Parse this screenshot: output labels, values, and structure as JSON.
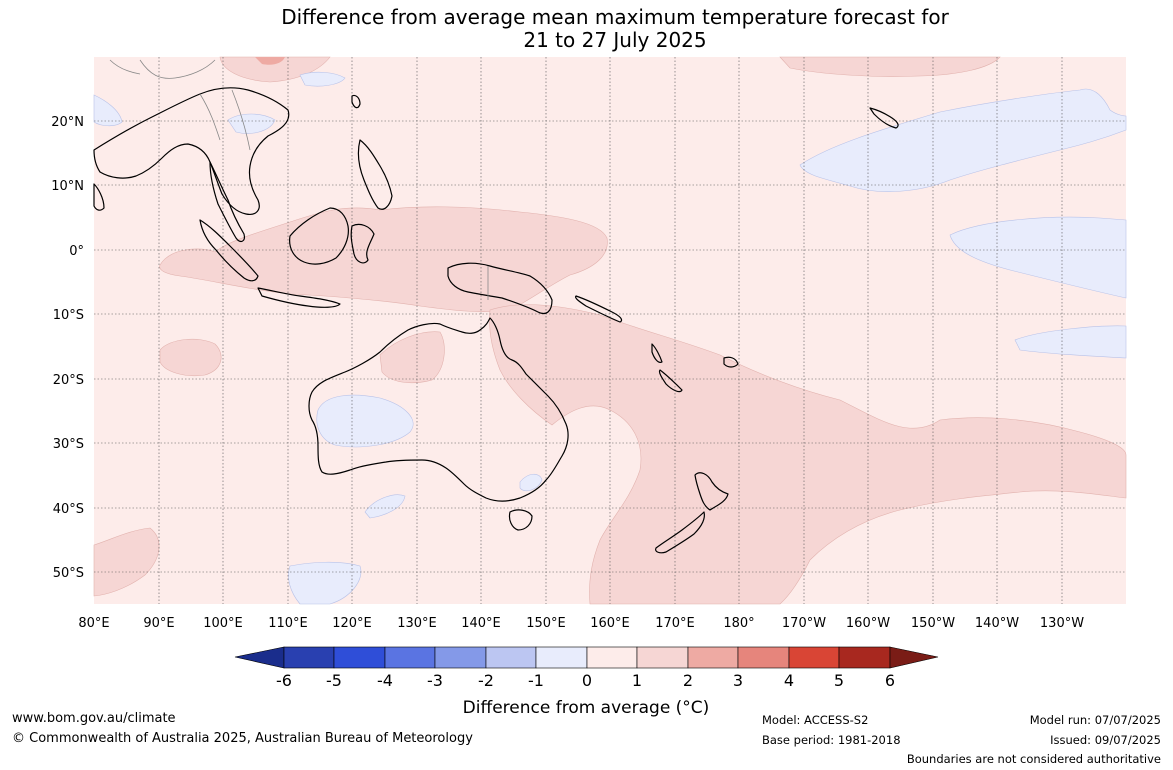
{
  "title_line1": "Difference from average mean maximum temperature forecast for",
  "title_line2": "21 to 27 July 2025",
  "map": {
    "lon_labels": [
      "80°E",
      "90°E",
      "100°E",
      "110°E",
      "120°E",
      "130°E",
      "140°E",
      "150°E",
      "160°E",
      "170°E",
      "180°",
      "170°W",
      "160°W",
      "150°W",
      "140°W",
      "130°W"
    ],
    "lat_labels": [
      "20°N",
      "10°N",
      "0°",
      "10°S",
      "20°S",
      "30°S",
      "40°S",
      "50°S"
    ],
    "lon_range": [
      80,
      240
    ],
    "lat_range": [
      -55,
      30
    ],
    "grid": true
  },
  "colorbar": {
    "title": "Difference from average (°C)",
    "ticks": [
      "-6",
      "-5",
      "-4",
      "-3",
      "-2",
      "-1",
      "0",
      "1",
      "2",
      "3",
      "4",
      "5",
      "6"
    ],
    "colors": [
      "#1a2d8c",
      "#2940b0",
      "#2f4ed8",
      "#5a74e2",
      "#8499e8",
      "#bcc6f2",
      "#e8ecfc",
      "#fdecea",
      "#f6d6d4",
      "#eeaaa3",
      "#e6857c",
      "#d94535",
      "#a8281f",
      "#7a1c16"
    ]
  },
  "footer": {
    "website": "www.bom.gov.au/climate",
    "copyright": "© Commonwealth of Australia 2025, Australian Bureau of Meteorology",
    "model": "Model: ACCESS-S2",
    "base_period": "Base period: 1981-2018",
    "model_run": "Model run: 07/07/2025",
    "issued": "Issued: 09/07/2025",
    "disclaimer": "Boundaries are not considered authoritative"
  }
}
